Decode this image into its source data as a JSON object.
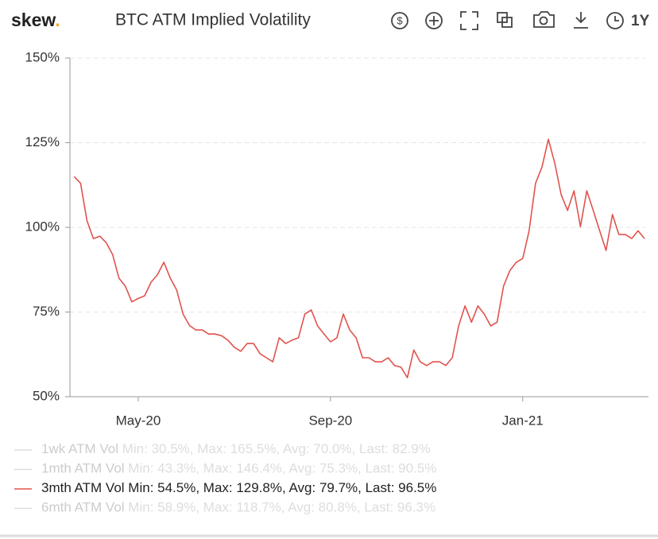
{
  "header": {
    "logo": "skew",
    "logo_dot": ".",
    "currency_icon": "$",
    "range": "1Y"
  },
  "chart_data": {
    "type": "line",
    "title": "BTC ATM Implied Volatility",
    "categories": [
      null,
      null,
      null,
      null,
      null,
      null,
      null,
      null,
      null,
      null,
      "May-20",
      null,
      null,
      null,
      null,
      null,
      null,
      null,
      null,
      null,
      null,
      null,
      null,
      null,
      null,
      null,
      null,
      null,
      null,
      null,
      null,
      null,
      null,
      null,
      null,
      null,
      null,
      null,
      null,
      null,
      "Sep-20",
      null,
      null,
      null,
      null,
      null,
      null,
      null,
      null,
      null,
      null,
      null,
      null,
      null,
      null,
      null,
      null,
      null,
      null,
      null,
      null,
      null,
      null,
      null,
      null,
      null,
      null,
      null,
      null,
      null,
      "Jan-21",
      null,
      null,
      null,
      null,
      null,
      null,
      null,
      null,
      null,
      null,
      null,
      null,
      null,
      null,
      null,
      null,
      null,
      null,
      null
    ],
    "series": [
      {
        "name": "3mth ATM Vol",
        "color": "#e0534d",
        "values": [
          115,
          113,
          102,
          96.7,
          97.4,
          95.5,
          92,
          85,
          82.6,
          78,
          79,
          79.8,
          83.8,
          86,
          89.7,
          85,
          81.5,
          74.4,
          71,
          69.7,
          69.7,
          68.5,
          68.5,
          68,
          66.7,
          64.6,
          63.4,
          65.7,
          65.7,
          62.7,
          61.5,
          60.3,
          67.4,
          65.7,
          66.7,
          67.4,
          74.4,
          75.6,
          70.9,
          68.5,
          66.2,
          67.4,
          74.4,
          69.7,
          67.4,
          61.5,
          61.5,
          60.3,
          60.3,
          61.5,
          59.2,
          58.7,
          55.6,
          63.8,
          60.3,
          59.2,
          60.3,
          60.3,
          59.2,
          61.5,
          70.9,
          76.8,
          72,
          76.8,
          74.4,
          70.9,
          72,
          82.6,
          87.3,
          89.7,
          90.8,
          99,
          113,
          117.8,
          126,
          119,
          109.6,
          105,
          110.8,
          100.2,
          110.8,
          105,
          99,
          93.2,
          103.8,
          97.9,
          97.9,
          96.7,
          99,
          96.7
        ]
      }
    ],
    "ylim": [
      50,
      150
    ],
    "yticks": [
      {
        "value": 50,
        "label": "50%"
      },
      {
        "value": 75,
        "label": "75%"
      },
      {
        "value": 100,
        "label": "100%"
      },
      {
        "value": 125,
        "label": "125%"
      },
      {
        "value": 150,
        "label": "150%"
      }
    ],
    "grid": true,
    "legend": [
      {
        "name": "1wk ATM Vol",
        "stats": "Min: 30.5%, Max: 165.5%, Avg: 70.0%, Last: 82.9%",
        "active": false
      },
      {
        "name": "1mth ATM Vol",
        "stats": "Min: 43.3%, Max: 146.4%, Avg: 75.3%, Last: 90.5%",
        "active": false
      },
      {
        "name": "3mth ATM Vol",
        "stats": "Min: 54.5%, Max: 129.8%, Avg: 79.7%, Last: 96.5%",
        "active": true
      },
      {
        "name": "6mth ATM Vol",
        "stats": "Min: 58.9%, Max: 118.7%, Avg: 80.8%, Last: 96.3%",
        "active": false
      }
    ]
  }
}
